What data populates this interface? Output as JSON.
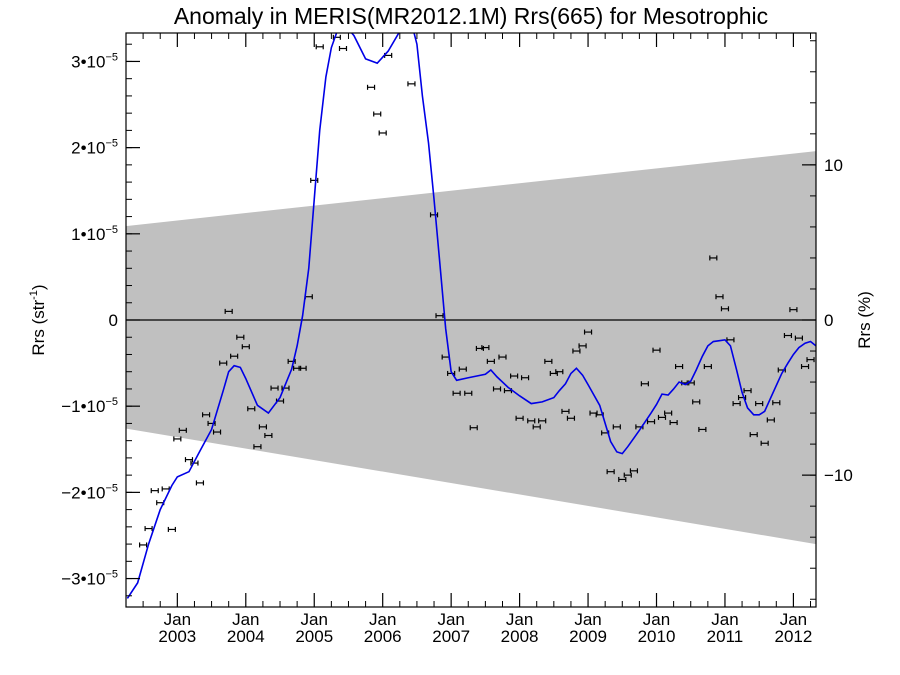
{
  "chart_data": {
    "type": "scatter",
    "title": "Anomaly in MERIS(MR2012.1M) Rrs(665) for Mesotrophic",
    "ylabel_left_text": "Rrs (str",
    "ylabel_left_sup": "-1",
    "ylabel_left_close": ")",
    "ylabel_right": "Rrs (%)",
    "xlim": [
      2002.25,
      2012.33
    ],
    "ylim": [
      -3.33e-05,
      3.33e-05
    ],
    "y2lim": [
      -18.5,
      18.5
    ],
    "colors": {
      "band": "#c0c0c0",
      "smoothed": "#0000e6",
      "points": "#000000",
      "zero": "#000000"
    },
    "y_ticks": [
      {
        "value": 3e-05,
        "mant": "3•10",
        "exp": "−5"
      },
      {
        "value": 2e-05,
        "mant": "2•10",
        "exp": "−5"
      },
      {
        "value": 1e-05,
        "mant": "1•10",
        "exp": "−5"
      },
      {
        "value": 0,
        "mant": "0",
        "exp": ""
      },
      {
        "value": -1e-05,
        "mant": "−1•10",
        "exp": "−5"
      },
      {
        "value": -2e-05,
        "mant": "−2•10",
        "exp": "−5"
      },
      {
        "value": -3e-05,
        "mant": "−3•10",
        "exp": "−5"
      }
    ],
    "y2_ticks": [
      {
        "value": 10,
        "label": "10"
      },
      {
        "value": 0,
        "label": "0"
      },
      {
        "value": -10,
        "label": "−10"
      }
    ],
    "x_ticks": [
      {
        "value": 2003,
        "month": "Jan",
        "year": "2003"
      },
      {
        "value": 2004,
        "month": "Jan",
        "year": "2004"
      },
      {
        "value": 2005,
        "month": "Jan",
        "year": "2005"
      },
      {
        "value": 2006,
        "month": "Jan",
        "year": "2006"
      },
      {
        "value": 2007,
        "month": "Jan",
        "year": "2007"
      },
      {
        "value": 2008,
        "month": "Jan",
        "year": "2008"
      },
      {
        "value": 2009,
        "month": "Jan",
        "year": "2009"
      },
      {
        "value": 2010,
        "month": "Jan",
        "year": "2010"
      },
      {
        "value": 2011,
        "month": "Jan",
        "year": "2011"
      },
      {
        "value": 2012,
        "month": "Jan",
        "year": "2012"
      }
    ],
    "band": {
      "x": [
        2002.25,
        2012.33
      ],
      "upper": [
        1.09e-05,
        1.96e-05
      ],
      "lower": [
        -1.26e-05,
        -2.6e-05
      ]
    },
    "points": [
      [
        2002.5,
        -2.61e-05
      ],
      [
        2002.58,
        -2.42e-05
      ],
      [
        2002.67,
        -1.98e-05
      ],
      [
        2002.75,
        -2.12e-05
      ],
      [
        2002.83,
        -1.96e-05
      ],
      [
        2002.92,
        -2.43e-05
      ],
      [
        2003.0,
        -1.38e-05
      ],
      [
        2003.08,
        -1.28e-05
      ],
      [
        2003.17,
        -1.62e-05
      ],
      [
        2003.25,
        -1.66e-05
      ],
      [
        2003.33,
        -1.89e-05
      ],
      [
        2003.42,
        -1.1e-05
      ],
      [
        2003.5,
        -1.2e-05
      ],
      [
        2003.58,
        -1.3e-05
      ],
      [
        2003.67,
        -5e-06
      ],
      [
        2003.75,
        1e-06
      ],
      [
        2003.83,
        -4.2e-06
      ],
      [
        2003.92,
        -2e-06
      ],
      [
        2004.0,
        -3.1e-06
      ],
      [
        2004.08,
        -1.03e-05
      ],
      [
        2004.17,
        -1.47e-05
      ],
      [
        2004.25,
        -1.24e-05
      ],
      [
        2004.33,
        -1.34e-05
      ],
      [
        2004.42,
        -7.9e-06
      ],
      [
        2004.5,
        -9.4e-06
      ],
      [
        2004.58,
        -7.9e-06
      ],
      [
        2004.67,
        -4.8e-06
      ],
      [
        2004.75,
        -5.6e-06
      ],
      [
        2004.83,
        -5.6e-06
      ],
      [
        2004.92,
        2.7e-06
      ],
      [
        2005.0,
        1.62e-05
      ],
      [
        2005.08,
        3.17e-05
      ],
      [
        2005.33,
        3.28e-05
      ],
      [
        2005.42,
        3.15e-05
      ],
      [
        2005.83,
        2.7e-05
      ],
      [
        2005.92,
        2.39e-05
      ],
      [
        2006.0,
        2.17e-05
      ],
      [
        2006.08,
        3.07e-05
      ],
      [
        2006.42,
        2.74e-05
      ],
      [
        2006.75,
        1.22e-05
      ],
      [
        2006.83,
        5e-07
      ],
      [
        2006.92,
        -4.3e-06
      ],
      [
        2007.0,
        -6.2e-06
      ],
      [
        2007.08,
        -8.5e-06
      ],
      [
        2007.17,
        -5.7e-06
      ],
      [
        2007.25,
        -8.5e-06
      ],
      [
        2007.33,
        -1.25e-05
      ],
      [
        2007.42,
        -3.3e-06
      ],
      [
        2007.5,
        -3.2e-06
      ],
      [
        2007.58,
        -4.8e-06
      ],
      [
        2007.67,
        -8e-06
      ],
      [
        2007.75,
        -4.3e-06
      ],
      [
        2007.83,
        -8.2e-06
      ],
      [
        2007.92,
        -6.5e-06
      ],
      [
        2008.0,
        -1.14e-05
      ],
      [
        2008.08,
        -6.7e-06
      ],
      [
        2008.17,
        -1.17e-05
      ],
      [
        2008.25,
        -1.24e-05
      ],
      [
        2008.33,
        -1.17e-05
      ],
      [
        2008.42,
        -4.8e-06
      ],
      [
        2008.5,
        -6.2e-06
      ],
      [
        2008.58,
        -6e-06
      ],
      [
        2008.67,
        -1.06e-05
      ],
      [
        2008.75,
        -1.14e-05
      ],
      [
        2008.83,
        -3.6e-06
      ],
      [
        2008.92,
        -3e-06
      ],
      [
        2009.0,
        -1.4e-06
      ],
      [
        2009.08,
        -1.08e-05
      ],
      [
        2009.17,
        -1.1e-05
      ],
      [
        2009.25,
        -1.31e-05
      ],
      [
        2009.33,
        -1.76e-05
      ],
      [
        2009.42,
        -1.24e-05
      ],
      [
        2009.5,
        -1.85e-05
      ],
      [
        2009.58,
        -1.8e-05
      ],
      [
        2009.67,
        -1.75e-05
      ],
      [
        2009.75,
        -1.24e-05
      ],
      [
        2009.83,
        -7.4e-06
      ],
      [
        2009.92,
        -1.18e-05
      ],
      [
        2010.0,
        -3.5e-06
      ],
      [
        2010.08,
        -1.13e-05
      ],
      [
        2010.17,
        -1.08e-05
      ],
      [
        2010.25,
        -1.19e-05
      ],
      [
        2010.33,
        -5.4e-06
      ],
      [
        2010.42,
        -7.3e-06
      ],
      [
        2010.5,
        -7.3e-06
      ],
      [
        2010.58,
        -9.5e-06
      ],
      [
        2010.67,
        -1.27e-05
      ],
      [
        2010.75,
        -5.4e-06
      ],
      [
        2010.83,
        7.2e-06
      ],
      [
        2010.92,
        2.7e-06
      ],
      [
        2011.0,
        1.3e-06
      ],
      [
        2011.08,
        -2.3e-06
      ],
      [
        2011.17,
        -9.7e-06
      ],
      [
        2011.25,
        -9e-06
      ],
      [
        2011.33,
        -8.2e-06
      ],
      [
        2011.42,
        -1.33e-05
      ],
      [
        2011.5,
        -9.7e-06
      ],
      [
        2011.58,
        -1.43e-05
      ],
      [
        2011.67,
        -1.16e-05
      ],
      [
        2011.75,
        -9.6e-06
      ],
      [
        2011.83,
        -5.8e-06
      ],
      [
        2011.92,
        -1.8e-06
      ],
      [
        2012.0,
        1.2e-06
      ],
      [
        2012.08,
        -2.1e-06
      ],
      [
        2012.17,
        -5.4e-06
      ],
      [
        2012.25,
        -4.6e-06
      ]
    ],
    "smoothed": [
      [
        2002.27,
        -3.23e-05
      ],
      [
        2002.42,
        -3.05e-05
      ],
      [
        2002.58,
        -2.6e-05
      ],
      [
        2002.75,
        -2.2e-05
      ],
      [
        2002.92,
        -1.92e-05
      ],
      [
        2003.0,
        -1.82e-05
      ],
      [
        2003.17,
        -1.76e-05
      ],
      [
        2003.33,
        -1.52e-05
      ],
      [
        2003.5,
        -1.27e-05
      ],
      [
        2003.67,
        -8.2e-06
      ],
      [
        2003.75,
        -6e-06
      ],
      [
        2003.83,
        -5.3e-06
      ],
      [
        2003.92,
        -5.5e-06
      ],
      [
        2004.0,
        -6.8e-06
      ],
      [
        2004.17,
        -9.9e-06
      ],
      [
        2004.33,
        -1.08e-05
      ],
      [
        2004.5,
        -9e-06
      ],
      [
        2004.67,
        -5.7e-06
      ],
      [
        2004.75,
        -3e-06
      ],
      [
        2004.83,
        5e-07
      ],
      [
        2004.92,
        6e-06
      ],
      [
        2005.0,
        1.4e-05
      ],
      [
        2005.08,
        2.2e-05
      ],
      [
        2005.17,
        2.82e-05
      ],
      [
        2005.25,
        3.16e-05
      ],
      [
        2005.33,
        3.34e-05
      ],
      [
        2005.42,
        3.45e-05
      ],
      [
        2005.58,
        3.3e-05
      ],
      [
        2005.75,
        3.03e-05
      ],
      [
        2005.92,
        2.98e-05
      ],
      [
        2006.08,
        3.12e-05
      ],
      [
        2006.25,
        3.35e-05
      ],
      [
        2006.42,
        3.45e-05
      ],
      [
        2006.5,
        3.2e-05
      ],
      [
        2006.58,
        2.6e-05
      ],
      [
        2006.67,
        2.05e-05
      ],
      [
        2006.75,
        1.4e-05
      ],
      [
        2006.83,
        7e-06
      ],
      [
        2006.92,
        -1e-06
      ],
      [
        2007.0,
        -6e-06
      ],
      [
        2007.08,
        -7e-06
      ],
      [
        2007.25,
        -6.7e-06
      ],
      [
        2007.5,
        -6.3e-06
      ],
      [
        2007.58,
        -5.8e-06
      ],
      [
        2007.67,
        -6.6e-06
      ],
      [
        2007.83,
        -7.8e-06
      ],
      [
        2008.0,
        -8.8e-06
      ],
      [
        2008.17,
        -9.7e-06
      ],
      [
        2008.33,
        -9.5e-06
      ],
      [
        2008.5,
        -9e-06
      ],
      [
        2008.58,
        -8.2e-06
      ],
      [
        2008.67,
        -7.4e-06
      ],
      [
        2008.75,
        -6.2e-06
      ],
      [
        2008.83,
        -5.6e-06
      ],
      [
        2008.92,
        -6.4e-06
      ],
      [
        2009.0,
        -7.5e-06
      ],
      [
        2009.17,
        -9.9e-06
      ],
      [
        2009.33,
        -1.41e-05
      ],
      [
        2009.42,
        -1.53e-05
      ],
      [
        2009.5,
        -1.55e-05
      ],
      [
        2009.58,
        -1.47e-05
      ],
      [
        2009.75,
        -1.28e-05
      ],
      [
        2009.92,
        -1.08e-05
      ],
      [
        2010.0,
        -9.8e-06
      ],
      [
        2010.08,
        -8.6e-06
      ],
      [
        2010.17,
        -8.7e-06
      ],
      [
        2010.25,
        -8e-06
      ],
      [
        2010.33,
        -7.2e-06
      ],
      [
        2010.42,
        -7.5e-06
      ],
      [
        2010.5,
        -7.1e-06
      ],
      [
        2010.58,
        -5.8e-06
      ],
      [
        2010.67,
        -4.2e-06
      ],
      [
        2010.75,
        -3e-06
      ],
      [
        2010.83,
        -2.5e-06
      ],
      [
        2010.92,
        -2.4e-06
      ],
      [
        2011.0,
        -2.3e-06
      ],
      [
        2011.08,
        -3e-06
      ],
      [
        2011.17,
        -5.8e-06
      ],
      [
        2011.25,
        -8.4e-06
      ],
      [
        2011.33,
        -1.02e-05
      ],
      [
        2011.42,
        -1.1e-05
      ],
      [
        2011.5,
        -1.1e-05
      ],
      [
        2011.58,
        -1.06e-05
      ],
      [
        2011.67,
        -9e-06
      ],
      [
        2011.83,
        -6.2e-06
      ],
      [
        2011.92,
        -5e-06
      ],
      [
        2012.0,
        -4e-06
      ],
      [
        2012.08,
        -3.2e-06
      ],
      [
        2012.17,
        -2.7e-06
      ],
      [
        2012.25,
        -2.5e-06
      ],
      [
        2012.33,
        -3e-06
      ]
    ]
  }
}
